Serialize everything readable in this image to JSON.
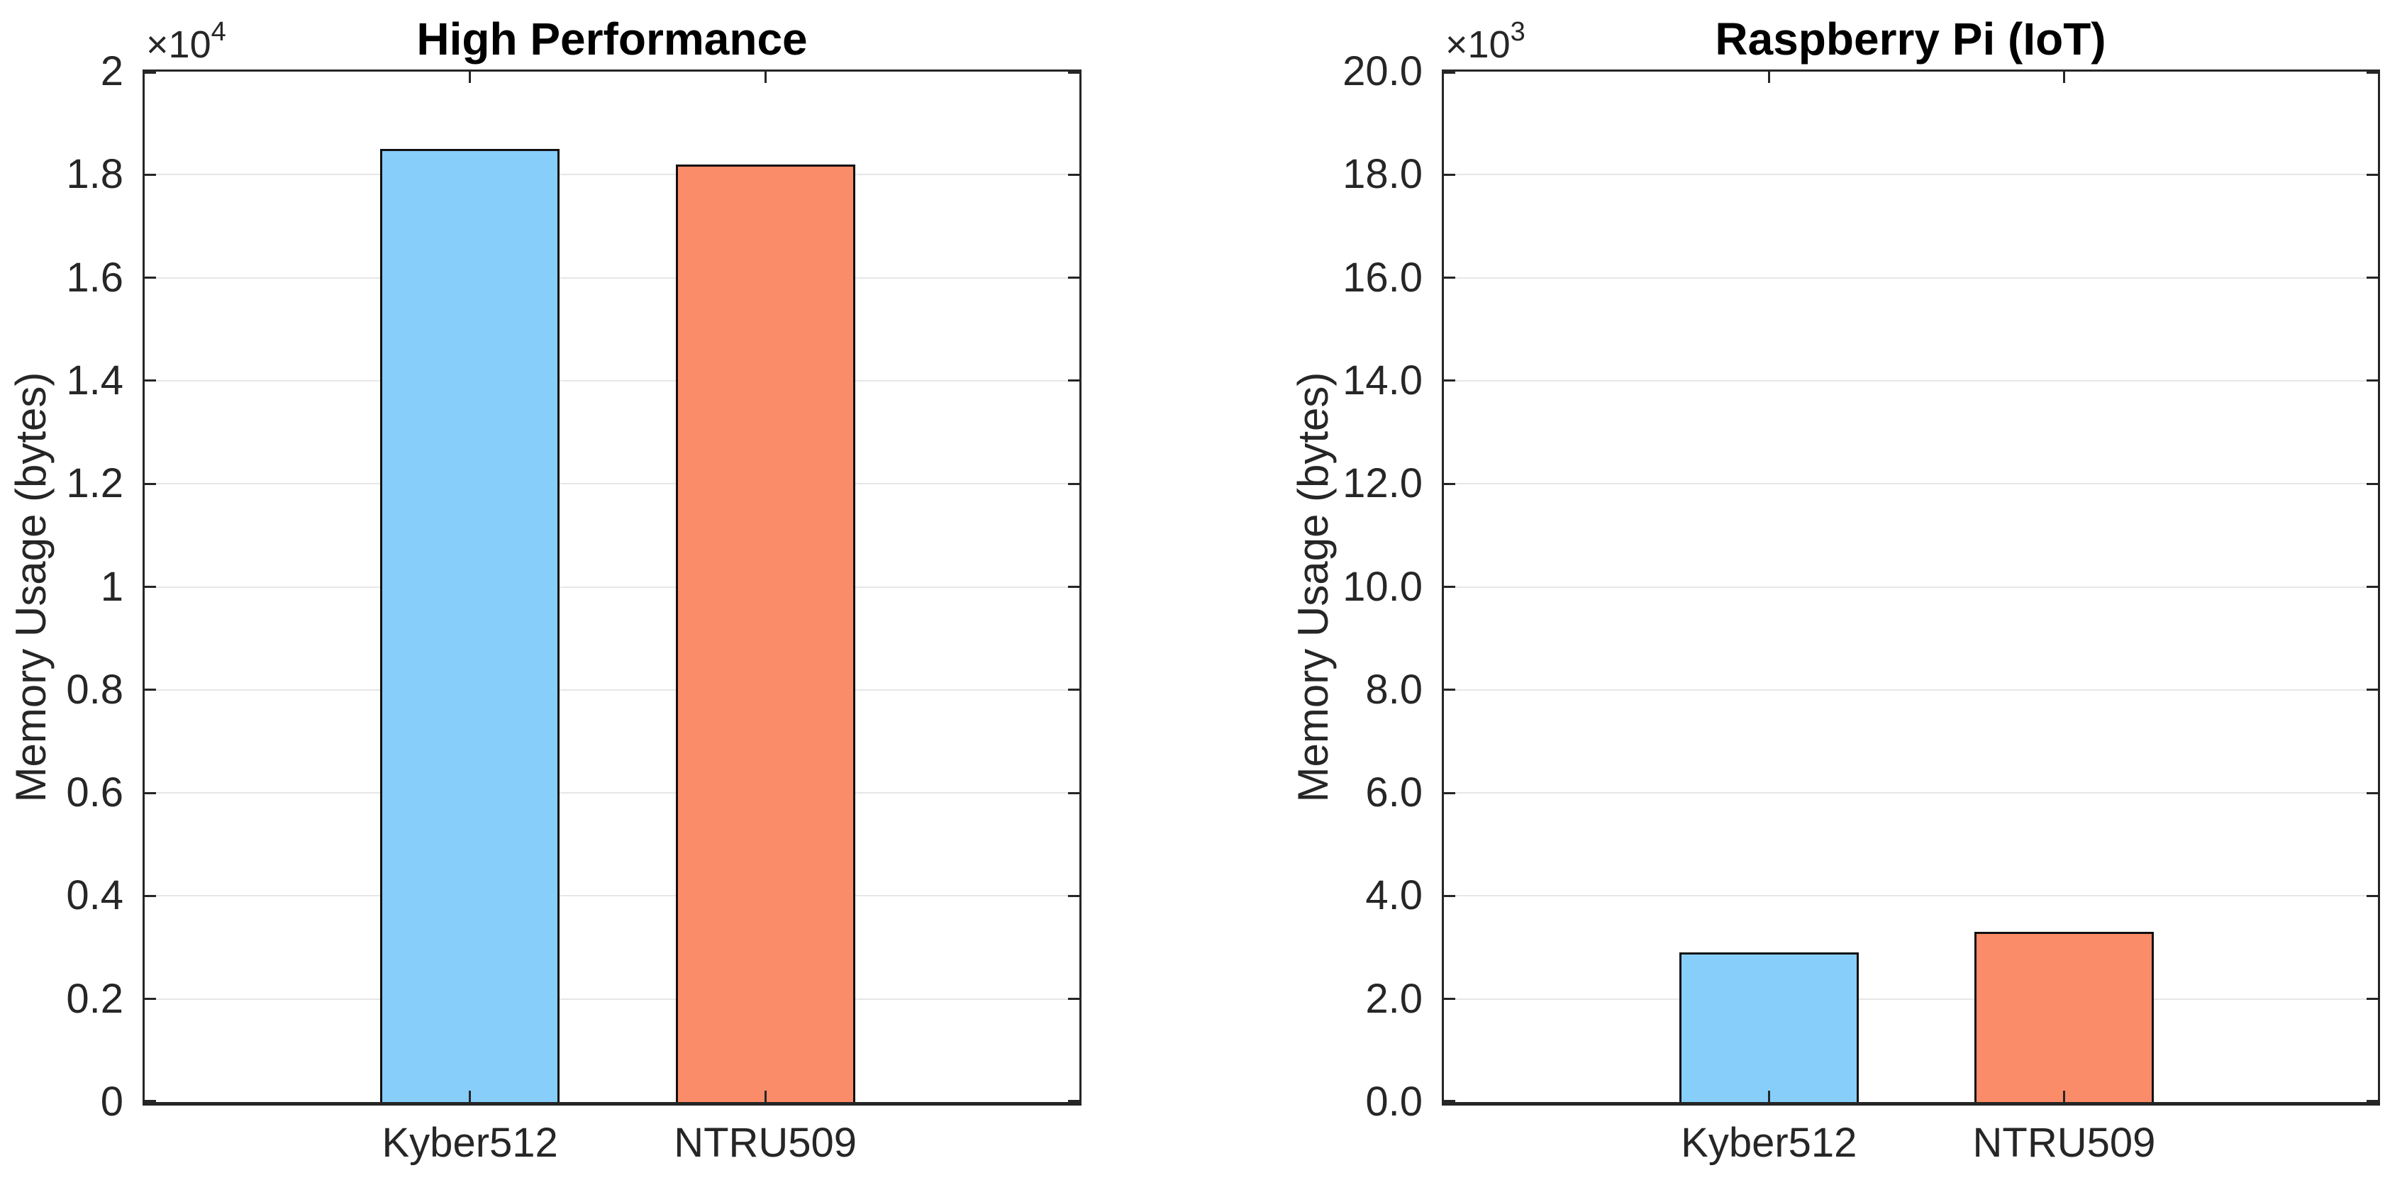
{
  "figure_background": "#ffffff",
  "axis_color": "#262626",
  "grid_color": "#e7e7e7",
  "chart_data": [
    {
      "type": "bar",
      "title": "High Performance",
      "xlabel": "",
      "ylabel": "Memory Usage (bytes)",
      "offset_base": "×10",
      "offset_exp": "4",
      "unit_scale": 10000,
      "categories": [
        "Kyber512",
        "NTRU509"
      ],
      "values": [
        18500,
        18200
      ],
      "bar_colors": [
        "#87CEFA",
        "#FB8C69"
      ],
      "bar_edge_color": "#111111",
      "ylim": [
        0,
        20000
      ],
      "ytick_step": 2000,
      "ytick_labels": [
        "0",
        "0.2",
        "0.4",
        "0.6",
        "0.8",
        "1",
        "1.2",
        "1.4",
        "1.6",
        "1.8",
        "2"
      ],
      "grid": "y",
      "legend_position": "none"
    },
    {
      "type": "bar",
      "title": "Raspberry Pi (IoT)",
      "xlabel": "",
      "ylabel": "Memory Usage (bytes)",
      "offset_base": "×10",
      "offset_exp": "3",
      "unit_scale": 1000,
      "categories": [
        "Kyber512",
        "NTRU509"
      ],
      "values": [
        2900,
        3300
      ],
      "bar_colors": [
        "#87CEFA",
        "#FB8C69"
      ],
      "bar_edge_color": "#111111",
      "ylim": [
        0,
        20000
      ],
      "ytick_step": 2000,
      "ytick_labels": [
        "0.0",
        "2.0",
        "4.0",
        "6.0",
        "8.0",
        "10.0",
        "12.0",
        "14.0",
        "16.0",
        "18.0",
        "20.0"
      ],
      "grid": "y",
      "legend_position": "none"
    }
  ]
}
